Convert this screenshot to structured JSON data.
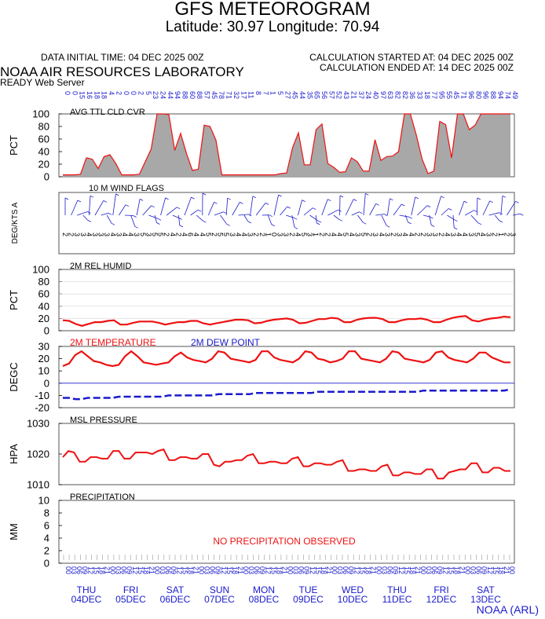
{
  "header": {
    "title": "GFS METEOROGRAM",
    "subtitle": "Latitude: 30.97 Longitude:  70.94",
    "init_time": "DATA INITIAL TIME: 04 DEC 2025 00Z",
    "calc_started": "CALCULATION STARTED AT: 04 DEC 2025 00Z",
    "calc_ended": "CALCULATION ENDED AT: 14 DEC 2025 00Z",
    "lab": "NOAA AIR RESOURCES LABORATORY",
    "server": "READY Web Server",
    "footer": "NOAA (ARL)"
  },
  "colors": {
    "red": "#ee1111",
    "blue": "#1a1acc",
    "cloud_fill": "#a8a8a8",
    "frame": "#555555"
  },
  "chart_data": [
    {
      "type": "area",
      "title": "AVG TTL CLD CVR",
      "ylabel": "PCT",
      "ylim": [
        0,
        100
      ],
      "yticks": [
        0,
        20,
        40,
        60,
        80,
        100
      ],
      "top_labels": [
        "0",
        "0",
        "15",
        "16",
        "18",
        "18",
        "4",
        "2",
        "0",
        "0",
        "2",
        "5",
        "23",
        "24",
        "44",
        "94",
        "88",
        "60",
        "88",
        "57",
        "45",
        "78",
        "71",
        "32",
        "17",
        "11",
        "8",
        "7",
        "1",
        "5",
        "27",
        "45",
        "44",
        "35",
        "65",
        "56",
        "57",
        "52",
        "43",
        "21",
        "37",
        "24",
        "40",
        "97",
        "63",
        "82",
        "82",
        "36",
        "33",
        "18",
        "77",
        "95",
        "55",
        "45",
        "71",
        "96",
        "80",
        "96",
        "88",
        "94",
        "74",
        "49"
      ],
      "values": [
        3,
        3,
        3,
        4,
        30,
        28,
        13,
        32,
        35,
        21,
        3,
        3,
        3,
        4,
        24,
        44,
        100,
        100,
        99,
        42,
        69,
        37,
        10,
        12,
        82,
        80,
        58,
        3,
        3,
        3,
        3,
        3,
        3,
        3,
        3,
        3,
        3,
        5,
        6,
        46,
        70,
        19,
        19,
        75,
        84,
        21,
        15,
        7,
        8,
        30,
        24,
        9,
        9,
        59,
        26,
        32,
        33,
        40,
        100,
        100,
        67,
        28,
        5,
        9,
        88,
        83,
        30,
        100,
        100,
        75,
        82,
        100,
        100,
        100,
        100,
        100,
        100
      ]
    },
    {
      "type": "table",
      "title": "10 M  WIND FLAGS",
      "ylabel": "DEG/KTS  A",
      "speeds": [
        "2",
        "2",
        "3",
        "3",
        "4",
        "3",
        "3",
        "3",
        "4",
        "3",
        "4",
        "4",
        "3",
        "5",
        "3",
        "5",
        "5",
        "2",
        "4",
        "2",
        "4",
        "6",
        "4",
        "4",
        "5",
        "2",
        "5",
        "5",
        "3",
        "4",
        "4",
        "3",
        "2",
        "2",
        "1",
        "0",
        "3",
        "3",
        "2",
        "4",
        "5",
        "3",
        "1",
        "2",
        "2",
        "4",
        "4",
        "5",
        "4",
        "3",
        "5",
        "2",
        "3",
        "4",
        "3",
        "2",
        "3",
        "4",
        "4",
        "2",
        "2",
        "3",
        "3",
        "2",
        "4",
        "3",
        "4",
        "4",
        "3",
        "5",
        "4",
        "3",
        "2",
        "1",
        "2",
        "3"
      ]
    },
    {
      "type": "line",
      "title": "2M REL HUMID",
      "ylabel": "PCT",
      "ylim": [
        0,
        100
      ],
      "yticks": [
        0,
        20,
        40,
        60,
        80,
        100
      ],
      "values": [
        17,
        16,
        11,
        8,
        11,
        14,
        14,
        16,
        17,
        10,
        10,
        13,
        15,
        15,
        15,
        13,
        10,
        12,
        14,
        14,
        16,
        16,
        12,
        10,
        12,
        14,
        16,
        18,
        18,
        17,
        12,
        13,
        16,
        18,
        19,
        20,
        18,
        12,
        13,
        16,
        19,
        19,
        21,
        20,
        14,
        14,
        18,
        20,
        21,
        21,
        19,
        14,
        14,
        17,
        19,
        19,
        20,
        18,
        14,
        14,
        18,
        21,
        23,
        24,
        17,
        15,
        18,
        20,
        21,
        23,
        22
      ]
    },
    {
      "type": "line",
      "title": "2M TEMPERATURE",
      "ylabel": "DEGC",
      "ylim": [
        -20,
        30
      ],
      "yticks": [
        -20,
        -10,
        0,
        10,
        20,
        30
      ],
      "series": [
        {
          "name": "2M TEMPERATURE",
          "values": [
            14,
            16,
            23,
            26,
            22,
            18,
            17,
            15,
            14,
            15,
            22,
            26,
            22,
            17,
            16,
            15,
            16,
            17,
            22,
            25,
            21,
            19,
            18,
            17,
            20,
            26,
            25,
            20,
            19,
            18,
            17,
            19,
            26,
            26,
            21,
            19,
            18,
            17,
            20,
            26,
            25,
            20,
            19,
            17,
            18,
            20,
            26,
            26,
            20,
            19,
            18,
            17,
            20,
            26,
            25,
            20,
            19,
            18,
            17,
            19,
            25,
            26,
            21,
            19,
            18,
            17,
            20,
            25,
            25,
            21,
            19,
            17,
            17
          ]
        },
        {
          "name": "2M  DEW POINT",
          "values": [
            -12,
            -12,
            -13,
            -13,
            -12,
            -12,
            -12,
            -12,
            -12,
            -11,
            -11,
            -11,
            -11,
            -11,
            -11,
            -11,
            -11,
            -10,
            -10,
            -10,
            -10,
            -10,
            -10,
            -10,
            -10,
            -9,
            -9,
            -9,
            -9,
            -9,
            -9,
            -8,
            -8,
            -8,
            -8,
            -8,
            -8,
            -8,
            -8,
            -8,
            -8,
            -7,
            -7,
            -7,
            -7,
            -7,
            -7,
            -7,
            -7,
            -7,
            -7,
            -7,
            -7,
            -7,
            -7,
            -7,
            -7,
            -7,
            -6,
            -6,
            -6,
            -6,
            -6,
            -6,
            -6,
            -6,
            -6,
            -6,
            -6,
            -6,
            -6,
            -6,
            -5
          ]
        }
      ]
    },
    {
      "type": "line",
      "title": "MSL PRESSURE",
      "ylabel": "HPA",
      "ylim": [
        1010,
        1030
      ],
      "yticks": [
        1010,
        1020,
        1030
      ],
      "values": [
        1019,
        1021,
        1020.5,
        1017.5,
        1017.5,
        1019,
        1019,
        1018.5,
        1018.5,
        1021,
        1021,
        1018.5,
        1018.5,
        1020.5,
        1020.5,
        1020.5,
        1020,
        1021,
        1021.5,
        1018,
        1018,
        1019,
        1019,
        1018.5,
        1018.5,
        1020,
        1020,
        1016.5,
        1016,
        1017.5,
        1017.5,
        1018,
        1018,
        1019.5,
        1020,
        1017,
        1017,
        1017.5,
        1017.5,
        1017,
        1017,
        1018.5,
        1019,
        1016,
        1016,
        1017,
        1017,
        1016.5,
        1016.5,
        1017.5,
        1018,
        1014.5,
        1014.5,
        1015,
        1015,
        1014.5,
        1014.5,
        1016,
        1016.5,
        1013,
        1013,
        1014,
        1014,
        1013.5,
        1013.5,
        1015,
        1015,
        1012,
        1012,
        1014,
        1014.5,
        1015,
        1015,
        1017,
        1017,
        1014,
        1014,
        1015.5,
        1015.5,
        1014.5,
        1014.5
      ]
    },
    {
      "type": "bar",
      "title": "PRECIPITATION",
      "ylabel": "MM",
      "ylim": [
        0,
        10
      ],
      "yticks": [
        0,
        2,
        4,
        6,
        8,
        10
      ],
      "annotation": "NO PRECIPITATION OBSERVED",
      "hour_labels": [
        "00",
        "03",
        "06",
        "09",
        "12",
        "15",
        "18",
        "21"
      ],
      "days": [
        {
          "day": "THU",
          "date": "04DEC"
        },
        {
          "day": "FRI",
          "date": "05DEC"
        },
        {
          "day": "SAT",
          "date": "06DEC"
        },
        {
          "day": "SUN",
          "date": "07DEC"
        },
        {
          "day": "MON",
          "date": "08DEC"
        },
        {
          "day": "TUE",
          "date": "09DEC"
        },
        {
          "day": "WED",
          "date": "10DEC"
        },
        {
          "day": "THU",
          "date": "11DEC"
        },
        {
          "day": "FRI",
          "date": "12DEC"
        },
        {
          "day": "SAT",
          "date": "13DEC"
        }
      ],
      "final_hour_label": "00"
    }
  ]
}
